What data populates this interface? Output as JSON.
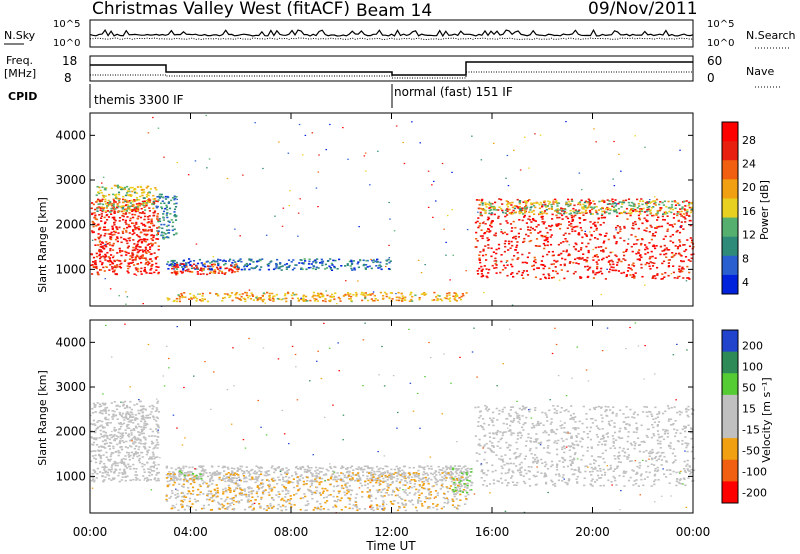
{
  "header": {
    "title": "Christmas Valley West (fitACF)",
    "beam": "Beam 14",
    "date": "09/Nov/2011"
  },
  "params": {
    "nsky_label": "N.Sky",
    "nsky_ticks": [
      "10^5",
      "10^0"
    ],
    "nsearch_label": "N.Search",
    "nsearch_ticks": [
      "10^5",
      "10^0"
    ],
    "freq_label_1": "Freq.",
    "freq_label_2": "[MHz]",
    "freq_ticks": [
      "18",
      "8"
    ],
    "nave_label": "Nave",
    "nave_ticks": [
      "60",
      "0"
    ],
    "cpid_label": "CPID",
    "cpid_segments": [
      "themis 3300 IF",
      "normal (fast) 151 IF"
    ]
  },
  "axes": {
    "ylabel": "Slant Range [km]",
    "xlabel": "Time UT",
    "yticks": [
      "4000",
      "3000",
      "2000",
      "1000"
    ],
    "xticks": [
      "00:00",
      "04:00",
      "08:00",
      "12:00",
      "16:00",
      "20:00",
      "00:00"
    ]
  },
  "chart_data": [
    {
      "type": "heatmap",
      "title": "",
      "xlabel": "Time UT",
      "ylabel": "Slant Range [km]",
      "x_range_hours": [
        0,
        24
      ],
      "ylim": [
        180,
        4500
      ],
      "colorbar": {
        "label": "Power [dB]",
        "ticks": [
          "28",
          "24",
          "20",
          "16",
          "12",
          "8",
          "4"
        ],
        "range": [
          0,
          30
        ],
        "colors": [
          "#0022dd",
          "#2a5fd0",
          "#2e8b7a",
          "#55b070",
          "#e8d020",
          "#f0a010",
          "#f06010",
          "#e82010",
          "#ff0000"
        ]
      },
      "scatter_regions": [
        {
          "t": [
            0,
            2.7
          ],
          "range": [
            900,
            2600
          ],
          "value": 26
        },
        {
          "t": [
            0.2,
            2.6
          ],
          "range": [
            2300,
            2900
          ],
          "value": 14
        },
        {
          "t": [
            2.6,
            3.4
          ],
          "range": [
            1700,
            2700
          ],
          "value": 8
        },
        {
          "t": [
            3.0,
            12.0
          ],
          "range": [
            1000,
            1250
          ],
          "value": 6
        },
        {
          "t": [
            3.2,
            6.0
          ],
          "range": [
            900,
            1150
          ],
          "value": 24
        },
        {
          "t": [
            3.0,
            15.0
          ],
          "range": [
            300,
            500
          ],
          "value": 18
        },
        {
          "t": [
            15.3,
            24
          ],
          "range": [
            800,
            2600
          ],
          "value": 27
        },
        {
          "t": [
            15.5,
            24
          ],
          "range": [
            2250,
            2550
          ],
          "value": 14
        }
      ]
    },
    {
      "type": "heatmap",
      "title": "",
      "xlabel": "Time UT",
      "ylabel": "Slant Range [km]",
      "x_range_hours": [
        0,
        24
      ],
      "ylim": [
        180,
        4500
      ],
      "colorbar": {
        "label": "Velocity [m s⁻¹]",
        "ticks": [
          "200",
          "100",
          "50",
          "15",
          "-15",
          "-50",
          "-100",
          "-200"
        ],
        "range": [
          -250,
          250
        ],
        "colors": [
          "#ff0000",
          "#f06010",
          "#f0a010",
          "#c0c0c0",
          "#c0c0c0",
          "#55cc33",
          "#2e8b57",
          "#2244cc"
        ]
      },
      "scatter_regions": [
        {
          "t": [
            0,
            2.7
          ],
          "range": [
            900,
            2700
          ],
          "value": 0
        },
        {
          "t": [
            3.0,
            15.0
          ],
          "range": [
            900,
            1250
          ],
          "value": 0
        },
        {
          "t": [
            3.0,
            15.0
          ],
          "range": [
            250,
            1100
          ],
          "value": -60
        },
        {
          "t": [
            3.4,
            4.4
          ],
          "range": [
            950,
            1150
          ],
          "value": 60
        },
        {
          "t": [
            14.4,
            15.2
          ],
          "range": [
            600,
            1200
          ],
          "value": 60
        },
        {
          "t": [
            15.3,
            24
          ],
          "range": [
            800,
            2600
          ],
          "value": 0
        }
      ]
    }
  ]
}
